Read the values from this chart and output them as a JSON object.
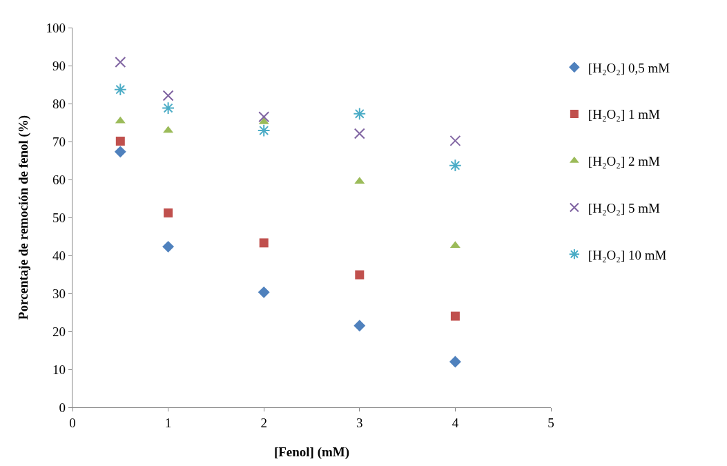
{
  "chart_data": {
    "type": "scatter",
    "xlabel": "[Fenol] (mM)",
    "ylabel": "Porcentaje de remoción de fenol (%)",
    "x": [
      0.5,
      1,
      2,
      3,
      4
    ],
    "series": [
      {
        "name": "[H₂O₂] 0,5 mM",
        "color": "#4f81bd",
        "marker": "diamond",
        "values": [
          67.3,
          42.3,
          30.3,
          21.5,
          12.0
        ]
      },
      {
        "name": "[H₂O₂] 1 mM",
        "color": "#c0504d",
        "marker": "square",
        "values": [
          70.1,
          51.2,
          43.3,
          34.9,
          24.0
        ]
      },
      {
        "name": "[H₂O₂] 2 mM",
        "color": "#9bbb59",
        "marker": "triangle",
        "values": [
          75.4,
          72.9,
          75.2,
          59.5,
          42.6
        ]
      },
      {
        "name": "[H₂O₂] 5 mM",
        "color": "#8064a2",
        "marker": "cross",
        "values": [
          90.9,
          82.1,
          76.5,
          72.1,
          70.2
        ]
      },
      {
        "name": "[H₂O₂] 10 mM",
        "color": "#4bacc6",
        "values": [
          83.7,
          78.8,
          72.9,
          77.3,
          63.7
        ]
      }
    ],
    "xlim": [
      0,
      5
    ],
    "xticks": [
      0,
      1,
      2,
      3,
      4,
      5
    ],
    "ylim": [
      0,
      100
    ],
    "yticks": [
      0,
      10,
      20,
      30,
      40,
      50,
      60,
      70,
      80,
      90,
      100
    ],
    "grid": false,
    "legend": "right"
  }
}
